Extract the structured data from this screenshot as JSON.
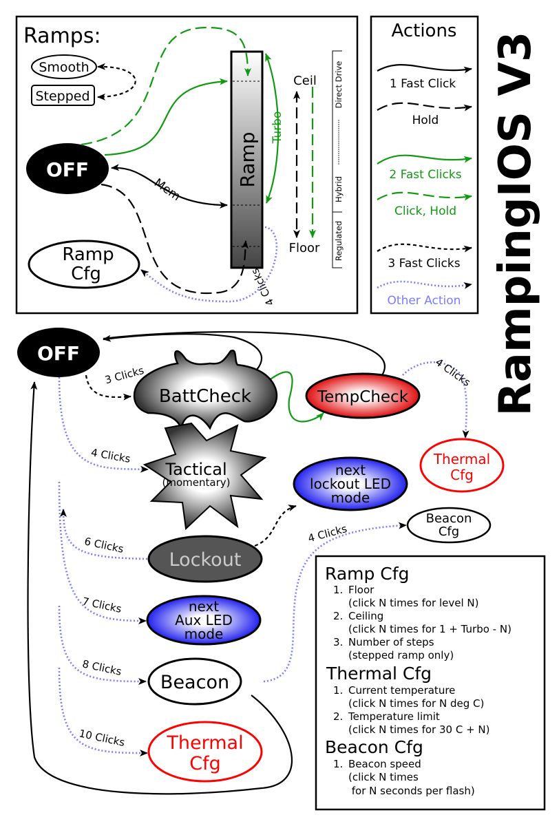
{
  "title": "RampingIOS V3",
  "colors": {
    "green": "#119911",
    "blue_other": "#7b7bff",
    "red": "#ff0000"
  },
  "ramps_panel": {
    "heading": "Ramps:",
    "smooth": "Smooth",
    "stepped": "Stepped",
    "off": "OFF",
    "ramp": "Ramp",
    "ramp_cfg": [
      "Ramp",
      "Cfg"
    ],
    "turbo": "Turbo",
    "mem": "Mem",
    "ceil": "Ceil",
    "floor": "Floor",
    "four_clicks": "4 Clicks",
    "modes": {
      "regulated": "Regulated",
      "hybrid": "Hybrid",
      "direct": "Direct Drive"
    }
  },
  "actions_panel": {
    "heading": "Actions",
    "items": [
      {
        "label": "1 Fast Click",
        "color": "#000000",
        "style": "solid"
      },
      {
        "label": "Hold",
        "color": "#000000",
        "style": "dashed"
      },
      {
        "label": "2 Fast Clicks",
        "color": "#119911",
        "style": "solid"
      },
      {
        "label": "Click, Hold",
        "color": "#119911",
        "style": "dashed"
      },
      {
        "label": "3 Fast Clicks",
        "color": "#000000",
        "style": "dotted"
      },
      {
        "label": "Other Action",
        "color": "#7b7bff",
        "style": "dotted"
      }
    ]
  },
  "state_diagram": {
    "off": "OFF",
    "battcheck": "BattCheck",
    "tempcheck": "TempCheck",
    "thermal_cfg_top": [
      "Thermal",
      "Cfg"
    ],
    "tactical": [
      "Tactical",
      "(momentary)"
    ],
    "lockout_led": [
      "next",
      "lockout LED",
      "mode"
    ],
    "beacon_cfg": [
      "Beacon",
      "Cfg"
    ],
    "lockout": "Lockout",
    "aux_led": [
      "next",
      "Aux LED",
      "mode"
    ],
    "beacon": "Beacon",
    "thermal_cfg": [
      "Thermal",
      "Cfg"
    ],
    "edges": {
      "c3": "3 Clicks",
      "c4_tactical": "4 Clicks",
      "c6": "6 Clicks",
      "c7": "7 Clicks",
      "c8": "8 Clicks",
      "c10": "10 Clicks",
      "c4_thermal": "4 Clicks",
      "c4_beacon": "4 Clicks"
    }
  },
  "config_notes": {
    "sections": [
      {
        "heading": "Ramp Cfg",
        "items": [
          {
            "n": "1.",
            "name": "Floor",
            "detail": [
              "(click N times for level N)"
            ]
          },
          {
            "n": "2.",
            "name": "Ceiling",
            "detail": [
              "(click N times for 1 + Turbo - N)"
            ]
          },
          {
            "n": "3.",
            "name": "Number of steps",
            "detail": [
              "(stepped ramp only)"
            ]
          }
        ]
      },
      {
        "heading": "Thermal Cfg",
        "items": [
          {
            "n": "1.",
            "name": "Current temperature",
            "detail": [
              "(click N times for N deg C)"
            ]
          },
          {
            "n": "2.",
            "name": "Temperature limit",
            "detail": [
              "(click N times for 30 C + N)"
            ]
          }
        ]
      },
      {
        "heading": "Beacon Cfg",
        "items": [
          {
            "n": "1.",
            "name": "Beacon speed",
            "detail": [
              "(click N times",
              " for N seconds per flash)"
            ]
          }
        ]
      }
    ]
  }
}
